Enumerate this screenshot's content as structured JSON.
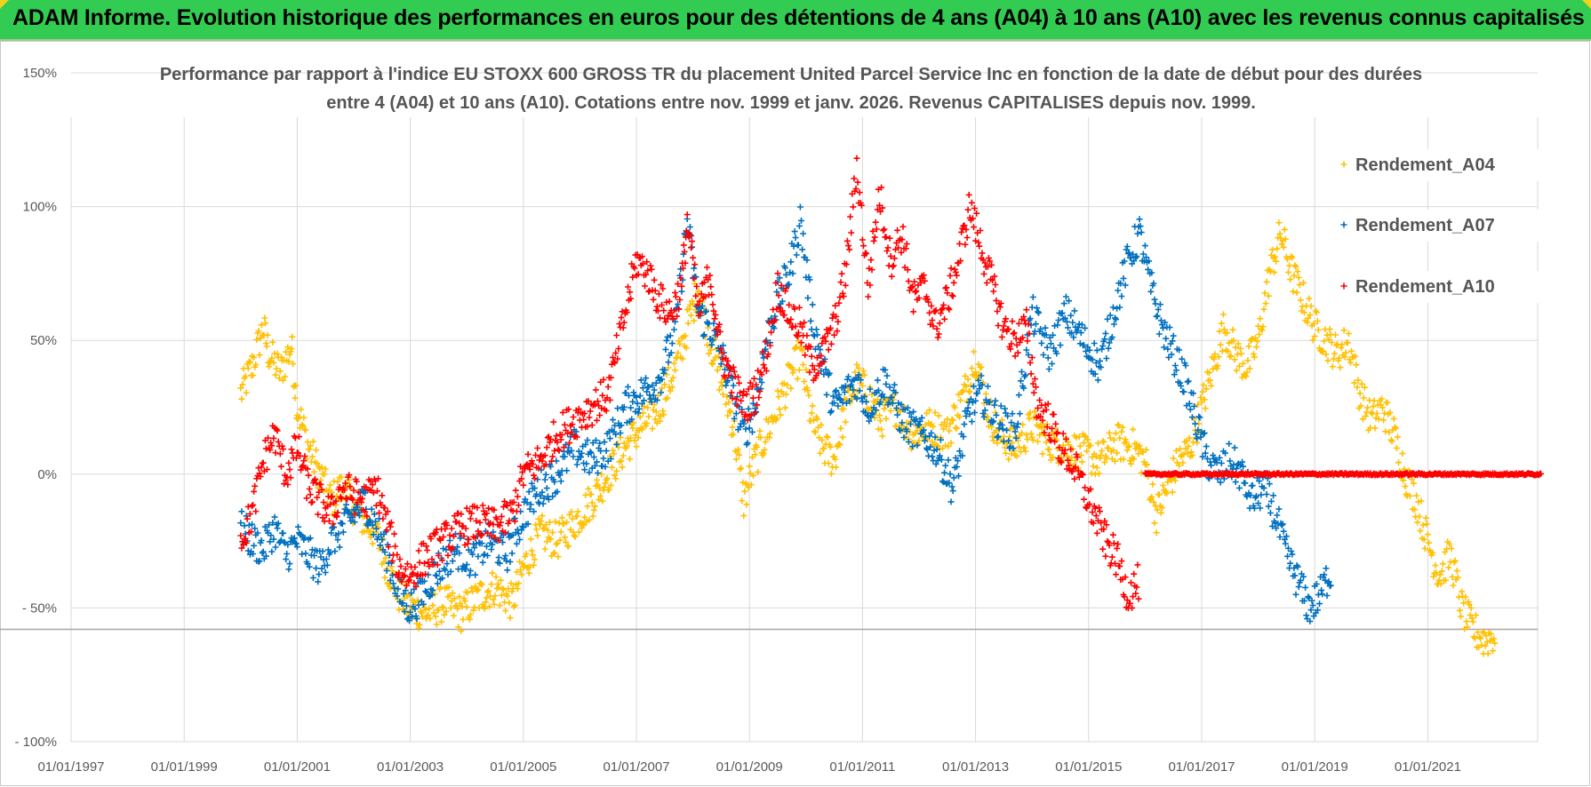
{
  "banner": {
    "title": "ADAM Informe. Evolution historique des performances en euros pour des détentions de 4 ans (A04) à 10 ans (A10) avec les revenus connus capitalisés"
  },
  "chart_data": {
    "type": "scatter",
    "title_line1": "Performance par rapport à l'indice EU STOXX 600 GROSS TR  du placement United Parcel Service Inc en fonction de la date de début pour des durées",
    "title_line2": "entre 4 (A04) et 10 ans (A10). Cotations entre nov. 1999 et janv. 2026. Revenus CAPITALISES depuis nov. 1999.",
    "x_tick_labels": [
      "01/01/1997",
      "01/01/1999",
      "01/01/2001",
      "01/01/2003",
      "01/01/2005",
      "01/01/2007",
      "01/01/2009",
      "01/01/2011",
      "01/01/2013",
      "01/01/2015",
      "01/01/2017",
      "01/01/2019",
      "01/01/2021"
    ],
    "y_tick_labels": [
      "150%",
      "100%",
      "50%",
      "0%",
      "- 50%",
      "- 100%"
    ],
    "y_tick_values": [
      150,
      100,
      50,
      0,
      -50,
      -100
    ],
    "xlim": [
      1997.0,
      2023.0
    ],
    "ylim": [
      -100,
      150
    ],
    "reference_line_value": -58,
    "marker": "+",
    "series": [
      {
        "name": "Rendement_A04",
        "color": "#ffc000",
        "points": [
          [
            2000.0,
            30
          ],
          [
            2000.2,
            40
          ],
          [
            2000.4,
            55
          ],
          [
            2000.5,
            45
          ],
          [
            2000.7,
            38
          ],
          [
            2000.9,
            48
          ],
          [
            2001.0,
            25
          ],
          [
            2001.2,
            10
          ],
          [
            2001.4,
            0
          ],
          [
            2001.6,
            -10
          ],
          [
            2001.8,
            -5
          ],
          [
            2002.0,
            -12
          ],
          [
            2002.2,
            -18
          ],
          [
            2002.4,
            -22
          ],
          [
            2002.6,
            -35
          ],
          [
            2002.8,
            -45
          ],
          [
            2003.0,
            -50
          ],
          [
            2003.3,
            -52
          ],
          [
            2003.6,
            -48
          ],
          [
            2003.9,
            -52
          ],
          [
            2004.2,
            -46
          ],
          [
            2004.5,
            -42
          ],
          [
            2004.8,
            -48
          ],
          [
            2005.0,
            -35
          ],
          [
            2005.3,
            -22
          ],
          [
            2005.6,
            -25
          ],
          [
            2005.9,
            -18
          ],
          [
            2006.2,
            -10
          ],
          [
            2006.5,
            0
          ],
          [
            2006.8,
            10
          ],
          [
            2007.1,
            18
          ],
          [
            2007.4,
            25
          ],
          [
            2007.7,
            40
          ],
          [
            2007.9,
            55
          ],
          [
            2008.1,
            70
          ],
          [
            2008.3,
            50
          ],
          [
            2008.5,
            35
          ],
          [
            2008.7,
            20
          ],
          [
            2008.9,
            -10
          ],
          [
            2009.1,
            5
          ],
          [
            2009.3,
            15
          ],
          [
            2009.5,
            25
          ],
          [
            2009.7,
            35
          ],
          [
            2009.9,
            45
          ],
          [
            2010.1,
            20
          ],
          [
            2010.3,
            10
          ],
          [
            2010.5,
            5
          ],
          [
            2010.7,
            25
          ],
          [
            2010.9,
            35
          ],
          [
            2011.1,
            30
          ],
          [
            2011.3,
            20
          ],
          [
            2011.6,
            25
          ],
          [
            2011.9,
            15
          ],
          [
            2012.2,
            18
          ],
          [
            2012.5,
            15
          ],
          [
            2012.8,
            30
          ],
          [
            2013.0,
            45
          ],
          [
            2013.2,
            25
          ],
          [
            2013.4,
            15
          ],
          [
            2013.7,
            10
          ],
          [
            2014.0,
            18
          ],
          [
            2014.3,
            12
          ],
          [
            2014.6,
            10
          ],
          [
            2014.9,
            8
          ],
          [
            2015.2,
            5
          ],
          [
            2015.5,
            12
          ],
          [
            2015.8,
            10
          ],
          [
            2016.0,
            5
          ],
          [
            2016.2,
            -15
          ],
          [
            2016.4,
            -5
          ],
          [
            2016.6,
            5
          ],
          [
            2016.8,
            10
          ],
          [
            2017.0,
            25
          ],
          [
            2017.2,
            40
          ],
          [
            2017.4,
            55
          ],
          [
            2017.6,
            45
          ],
          [
            2017.8,
            40
          ],
          [
            2018.0,
            50
          ],
          [
            2018.2,
            75
          ],
          [
            2018.4,
            90
          ],
          [
            2018.6,
            75
          ],
          [
            2018.8,
            65
          ],
          [
            2019.0,
            55
          ],
          [
            2019.2,
            50
          ],
          [
            2019.4,
            45
          ],
          [
            2019.6,
            50
          ],
          [
            2019.8,
            30
          ],
          [
            2020.0,
            20
          ],
          [
            2020.2,
            25
          ],
          [
            2020.4,
            15
          ],
          [
            2020.6,
            0
          ],
          [
            2020.8,
            -10
          ],
          [
            2021.0,
            -25
          ],
          [
            2021.2,
            -38
          ],
          [
            2021.4,
            -30
          ],
          [
            2021.6,
            -50
          ],
          [
            2021.8,
            -58
          ],
          [
            2022.0,
            -62
          ],
          [
            2022.2,
            -60
          ]
        ]
      },
      {
        "name": "Rendement_A07",
        "color": "#0070c0",
        "points": [
          [
            2000.0,
            -20
          ],
          [
            2000.2,
            -25
          ],
          [
            2000.4,
            -28
          ],
          [
            2000.6,
            -20
          ],
          [
            2000.8,
            -30
          ],
          [
            2001.0,
            -25
          ],
          [
            2001.2,
            -30
          ],
          [
            2001.4,
            -35
          ],
          [
            2001.6,
            -25
          ],
          [
            2001.8,
            -20
          ],
          [
            2002.0,
            -15
          ],
          [
            2002.2,
            -10
          ],
          [
            2002.4,
            -20
          ],
          [
            2002.6,
            -30
          ],
          [
            2002.8,
            -45
          ],
          [
            2003.0,
            -50
          ],
          [
            2003.2,
            -45
          ],
          [
            2003.5,
            -35
          ],
          [
            2003.8,
            -28
          ],
          [
            2004.1,
            -32
          ],
          [
            2004.4,
            -25
          ],
          [
            2004.7,
            -30
          ],
          [
            2005.0,
            -15
          ],
          [
            2005.3,
            -5
          ],
          [
            2005.6,
            0
          ],
          [
            2005.9,
            10
          ],
          [
            2006.2,
            5
          ],
          [
            2006.5,
            10
          ],
          [
            2006.8,
            25
          ],
          [
            2007.1,
            30
          ],
          [
            2007.4,
            35
          ],
          [
            2007.7,
            55
          ],
          [
            2007.9,
            95
          ],
          [
            2008.1,
            60
          ],
          [
            2008.3,
            55
          ],
          [
            2008.5,
            45
          ],
          [
            2008.7,
            30
          ],
          [
            2008.9,
            15
          ],
          [
            2009.1,
            25
          ],
          [
            2009.3,
            50
          ],
          [
            2009.5,
            65
          ],
          [
            2009.7,
            75
          ],
          [
            2009.9,
            95
          ],
          [
            2010.1,
            60
          ],
          [
            2010.3,
            40
          ],
          [
            2010.5,
            25
          ],
          [
            2010.7,
            30
          ],
          [
            2010.9,
            35
          ],
          [
            2011.1,
            25
          ],
          [
            2011.4,
            35
          ],
          [
            2011.7,
            20
          ],
          [
            2012.0,
            15
          ],
          [
            2012.3,
            10
          ],
          [
            2012.6,
            -5
          ],
          [
            2012.9,
            25
          ],
          [
            2013.1,
            30
          ],
          [
            2013.4,
            20
          ],
          [
            2013.7,
            15
          ],
          [
            2014.0,
            60
          ],
          [
            2014.3,
            45
          ],
          [
            2014.6,
            60
          ],
          [
            2014.9,
            50
          ],
          [
            2015.2,
            40
          ],
          [
            2015.5,
            65
          ],
          [
            2015.7,
            80
          ],
          [
            2015.9,
            90
          ],
          [
            2016.1,
            70
          ],
          [
            2016.3,
            55
          ],
          [
            2016.5,
            45
          ],
          [
            2016.7,
            35
          ],
          [
            2016.9,
            20
          ],
          [
            2017.1,
            5
          ],
          [
            2017.3,
            0
          ],
          [
            2017.5,
            5
          ],
          [
            2017.7,
            0
          ],
          [
            2017.9,
            -10
          ],
          [
            2018.1,
            -5
          ],
          [
            2018.3,
            -15
          ],
          [
            2018.5,
            -30
          ],
          [
            2018.7,
            -40
          ],
          [
            2018.9,
            -50
          ],
          [
            2019.1,
            -45
          ],
          [
            2019.3,
            -35
          ]
        ]
      },
      {
        "name": "Rendement_A10",
        "color": "#ff0000",
        "points": [
          [
            2000.0,
            -25
          ],
          [
            2000.2,
            -15
          ],
          [
            2000.4,
            5
          ],
          [
            2000.6,
            15
          ],
          [
            2000.8,
            0
          ],
          [
            2001.0,
            10
          ],
          [
            2001.2,
            -5
          ],
          [
            2001.4,
            -10
          ],
          [
            2001.6,
            -15
          ],
          [
            2001.8,
            -5
          ],
          [
            2002.0,
            -8
          ],
          [
            2002.2,
            -10
          ],
          [
            2002.4,
            -5
          ],
          [
            2002.6,
            -20
          ],
          [
            2002.8,
            -35
          ],
          [
            2003.0,
            -38
          ],
          [
            2003.3,
            -30
          ],
          [
            2003.6,
            -25
          ],
          [
            2003.9,
            -20
          ],
          [
            2004.2,
            -18
          ],
          [
            2004.5,
            -20
          ],
          [
            2004.8,
            -15
          ],
          [
            2005.0,
            0
          ],
          [
            2005.3,
            5
          ],
          [
            2005.6,
            15
          ],
          [
            2005.9,
            20
          ],
          [
            2006.2,
            25
          ],
          [
            2006.5,
            30
          ],
          [
            2006.8,
            60
          ],
          [
            2007.0,
            80
          ],
          [
            2007.2,
            75
          ],
          [
            2007.4,
            65
          ],
          [
            2007.6,
            60
          ],
          [
            2007.8,
            70
          ],
          [
            2007.9,
            95
          ],
          [
            2008.1,
            60
          ],
          [
            2008.3,
            75
          ],
          [
            2008.5,
            45
          ],
          [
            2008.7,
            35
          ],
          [
            2008.9,
            25
          ],
          [
            2009.1,
            30
          ],
          [
            2009.3,
            45
          ],
          [
            2009.5,
            70
          ],
          [
            2009.7,
            60
          ],
          [
            2009.9,
            55
          ],
          [
            2010.1,
            40
          ],
          [
            2010.3,
            45
          ],
          [
            2010.5,
            55
          ],
          [
            2010.7,
            75
          ],
          [
            2010.9,
            115
          ],
          [
            2011.1,
            70
          ],
          [
            2011.3,
            105
          ],
          [
            2011.5,
            80
          ],
          [
            2011.7,
            90
          ],
          [
            2011.9,
            65
          ],
          [
            2012.1,
            70
          ],
          [
            2012.3,
            55
          ],
          [
            2012.5,
            65
          ],
          [
            2012.7,
            80
          ],
          [
            2012.9,
            100
          ],
          [
            2013.1,
            85
          ],
          [
            2013.3,
            70
          ],
          [
            2013.5,
            55
          ],
          [
            2013.7,
            50
          ],
          [
            2013.9,
            55
          ],
          [
            2014.1,
            25
          ],
          [
            2014.3,
            20
          ],
          [
            2014.5,
            10
          ],
          [
            2014.7,
            5
          ],
          [
            2014.9,
            -5
          ],
          [
            2015.1,
            -15
          ],
          [
            2015.3,
            -25
          ],
          [
            2015.5,
            -32
          ],
          [
            2015.7,
            -45
          ],
          [
            2015.9,
            -40
          ]
        ],
        "flat_segment": {
          "x_start": 2016.0,
          "x_end": 2023.0,
          "value": 0
        }
      }
    ],
    "legend": [
      "Rendement_A04",
      "Rendement_A07",
      "Rendement_A10"
    ]
  }
}
